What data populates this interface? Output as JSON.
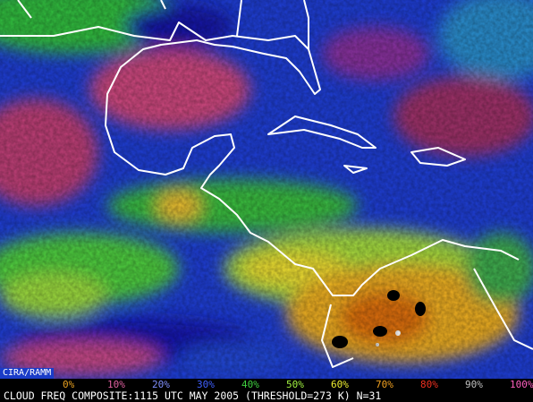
{
  "credit": "CIRA/RAMM",
  "caption": "CLOUD FREQ COMPOSITE:1115 UTC MAY 2005 (THRESHOLD=273 K) N=31",
  "legend": {
    "items": [
      {
        "label": "0%",
        "color": "#e8a020"
      },
      {
        "label": "10%",
        "color": "#e060a0"
      },
      {
        "label": "20%",
        "color": "#8090ff"
      },
      {
        "label": "30%",
        "color": "#4060ff"
      },
      {
        "label": "40%",
        "color": "#40d040"
      },
      {
        "label": "50%",
        "color": "#a0f040"
      },
      {
        "label": "60%",
        "color": "#f0f030"
      },
      {
        "label": "70%",
        "color": "#f0a020"
      },
      {
        "label": "80%",
        "color": "#f03020"
      },
      {
        "label": "90%",
        "color": "#c0c0c0"
      },
      {
        "label": "100%",
        "color": "#ff60c0"
      }
    ]
  }
}
